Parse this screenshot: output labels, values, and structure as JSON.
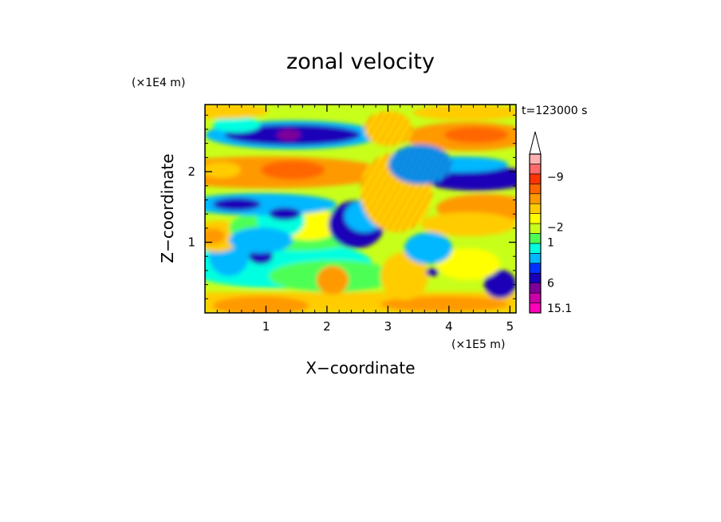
{
  "chart_data": {
    "type": "heatmap",
    "title": "zonal velocity",
    "time_label": "t=123000 s",
    "xlabel": "X−coordinate",
    "ylabel": "Z−coordinate",
    "x_scale_label": "(×1E5 m)",
    "y_scale_label": "(×1E4 m)",
    "xlim": [
      0,
      5.1
    ],
    "ylim": [
      0,
      2.95
    ],
    "x_ticks": [
      1,
      2,
      3,
      4,
      5
    ],
    "y_ticks": [
      1,
      2
    ],
    "colorbar": {
      "tick_labels": [
        "15.1",
        "6",
        "1",
        "−2",
        "−9"
      ],
      "colors": [
        "#ff00bb",
        "#cc00aa",
        "#7f0099",
        "#1a00b8",
        "#0033ff",
        "#00b8ff",
        "#00ffe0",
        "#4dff55",
        "#c8ff1a",
        "#ffff00",
        "#ffcc00",
        "#ff9900",
        "#ff6600",
        "#ff3300",
        "#ff6a6a",
        "#ffb0b0"
      ],
      "extend_max": true
    },
    "field_summary": "Zonal velocity field with horizontal banded structure: positive (orange/red) bands near z≈2.0 and z≈2.5 (x>3.3), strong negative (blue/purple) bands near z≈2.5 (x<2.2), z≈1.5 and z≈2.0 (x>3.5); wave-like tilted streaks between x≈2 and x≈4."
  }
}
